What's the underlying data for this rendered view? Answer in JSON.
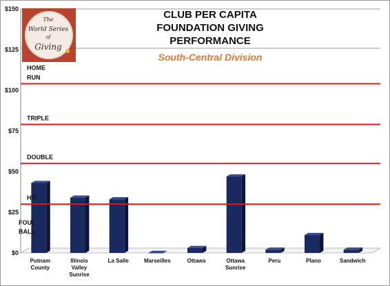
{
  "chart_data": {
    "type": "bar",
    "title_lines": [
      "CLUB PER CAPITA",
      "FOUNDATION GIVING",
      "PERFORMANCE"
    ],
    "subtitle": "South-Central Division",
    "categories": [
      [
        "Putnam",
        "County"
      ],
      [
        "Illinois",
        "Valley",
        "Sunrise"
      ],
      [
        "La Salle"
      ],
      [
        "Marseilles"
      ],
      [
        "Ottawa"
      ],
      [
        "Ottawa",
        "Sunrise"
      ],
      [
        "Peru"
      ],
      [
        "Plano"
      ],
      [
        "Sandwich"
      ]
    ],
    "values": [
      43,
      34,
      33,
      0,
      3,
      47,
      2,
      11,
      2
    ],
    "bar_color": "#1b2a5e",
    "ylim": [
      0,
      150
    ],
    "yticks": [
      "$0",
      "$25",
      "$50",
      "$75",
      "$100",
      "$125",
      "$150"
    ],
    "grid": "top line only",
    "reference_lines": [
      {
        "label": [
          "HOME",
          "RUN"
        ],
        "value": 104
      },
      {
        "label": [
          "TRIPLE"
        ],
        "value": 79
      },
      {
        "label": [
          "DOUBLE"
        ],
        "value": 55
      },
      {
        "label": [
          "HIT"
        ],
        "value": 30
      }
    ],
    "extra_labels": [
      [
        "FOUL",
        "BALL"
      ]
    ],
    "reference_line_color": "#e01818",
    "logo_lines": [
      "The",
      "World Series",
      "of",
      "Giving"
    ],
    "logo_color": "#b8432f"
  }
}
